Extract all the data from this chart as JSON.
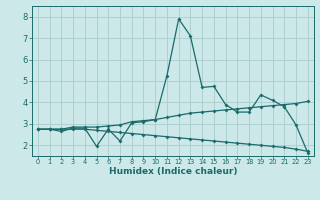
{
  "xlabel": "Humidex (Indice chaleur)",
  "background_color": "#cce8e8",
  "grid_color": "#aacccc",
  "line_color": "#1a6b6b",
  "xlim": [
    -0.5,
    23.5
  ],
  "ylim": [
    1.5,
    8.5
  ],
  "x_ticks": [
    0,
    1,
    2,
    3,
    4,
    5,
    6,
    7,
    8,
    9,
    10,
    11,
    12,
    13,
    14,
    15,
    16,
    17,
    18,
    19,
    20,
    21,
    22,
    23
  ],
  "y_ticks": [
    2,
    3,
    4,
    5,
    6,
    7,
    8
  ],
  "series1_x": [
    0,
    1,
    2,
    3,
    4,
    5,
    6,
    7,
    8,
    9,
    10,
    11,
    12,
    13,
    14,
    15,
    16,
    17,
    18,
    19,
    20,
    21,
    22,
    23
  ],
  "series1_y": [
    2.75,
    2.75,
    2.65,
    2.8,
    2.8,
    1.95,
    2.75,
    2.2,
    3.05,
    3.1,
    3.2,
    5.25,
    7.9,
    7.1,
    4.7,
    4.75,
    3.9,
    3.55,
    3.55,
    4.35,
    4.1,
    3.8,
    2.95,
    1.65
  ],
  "series2_x": [
    0,
    1,
    2,
    3,
    4,
    5,
    6,
    7,
    8,
    9,
    10,
    11,
    12,
    13,
    14,
    15,
    16,
    17,
    18,
    19,
    20,
    21,
    22,
    23
  ],
  "series2_y": [
    2.75,
    2.75,
    2.75,
    2.85,
    2.85,
    2.85,
    2.9,
    2.95,
    3.1,
    3.15,
    3.2,
    3.3,
    3.4,
    3.5,
    3.55,
    3.6,
    3.65,
    3.7,
    3.75,
    3.8,
    3.85,
    3.9,
    3.95,
    4.05
  ],
  "series3_x": [
    0,
    1,
    2,
    3,
    4,
    5,
    6,
    7,
    8,
    9,
    10,
    11,
    12,
    13,
    14,
    15,
    16,
    17,
    18,
    19,
    20,
    21,
    22,
    23
  ],
  "series3_y": [
    2.75,
    2.75,
    2.75,
    2.75,
    2.75,
    2.7,
    2.65,
    2.6,
    2.55,
    2.5,
    2.45,
    2.4,
    2.35,
    2.3,
    2.25,
    2.2,
    2.15,
    2.1,
    2.05,
    2.0,
    1.95,
    1.9,
    1.82,
    1.72
  ],
  "xlabel_fontsize": 6.5,
  "tick_fontsize_x": 4.8,
  "tick_fontsize_y": 6.0,
  "linewidth": 0.9,
  "markersize": 2.0
}
